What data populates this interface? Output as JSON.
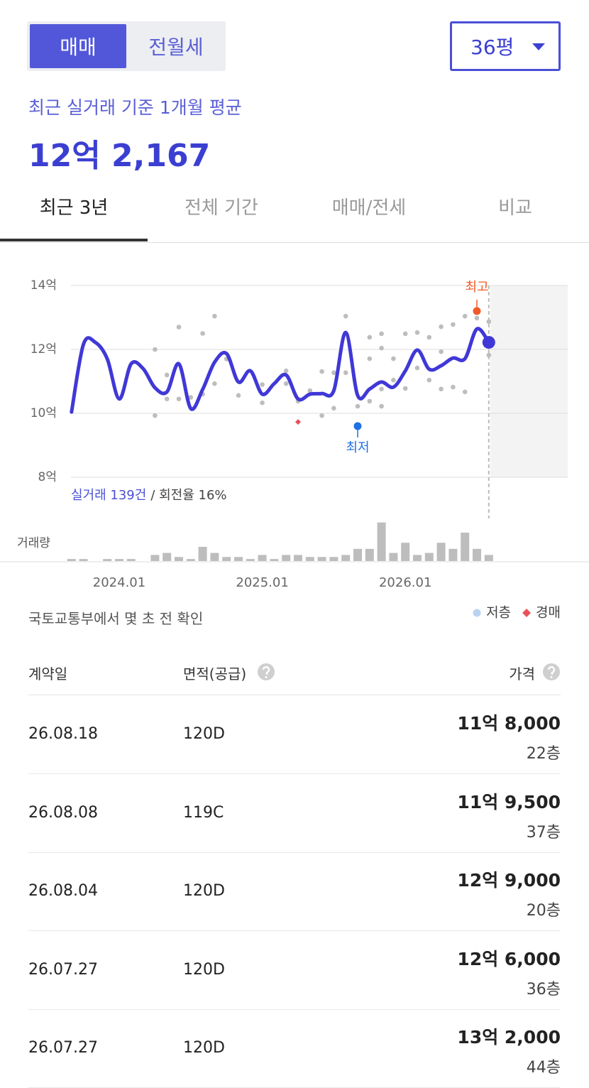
{
  "deal_toggle": {
    "options": [
      "매매",
      "전월세"
    ],
    "selected": 0
  },
  "size_selector": "36평",
  "summary": {
    "label": "최근 실거래 기준 1개월 평균",
    "value": "12억 2,167"
  },
  "tabs": {
    "items": [
      "최근 3년",
      "전체 기간",
      "매매/전세",
      "비교"
    ],
    "selected": 0
  },
  "chart_data": {
    "type": "line",
    "color": "#4038d6",
    "x": [
      "2023.09",
      "2023.10",
      "2023.11",
      "2023.12",
      "2024.01",
      "2024.02",
      "2024.03",
      "2024.04",
      "2024.05",
      "2024.06",
      "2024.07",
      "2024.08",
      "2024.09",
      "2024.10",
      "2024.11",
      "2024.12",
      "2025.01",
      "2025.02",
      "2025.03",
      "2025.04",
      "2025.05",
      "2025.06",
      "2025.07",
      "2025.08",
      "2025.09",
      "2025.10",
      "2025.11",
      "2025.12",
      "2026.01",
      "2026.02",
      "2026.03",
      "2026.04",
      "2026.05",
      "2026.06",
      "2026.07",
      "2026.08"
    ],
    "values": [
      10.04,
      12.16,
      12.22,
      11.7,
      10.45,
      11.55,
      11.4,
      10.8,
      10.67,
      11.55,
      10.15,
      10.75,
      11.6,
      11.87,
      10.98,
      11.33,
      10.6,
      10.93,
      11.2,
      10.45,
      10.6,
      10.62,
      10.71,
      12.53,
      10.56,
      10.76,
      10.98,
      10.82,
      11.33,
      11.98,
      11.38,
      11.49,
      11.73,
      11.71,
      12.64,
      12.22
    ],
    "xticks": [
      "2024.01",
      "2025.01",
      "2026.01"
    ],
    "ylim": [
      8,
      14
    ],
    "yticks": [
      {
        "value": 8,
        "label": "8억"
      },
      {
        "value": 10,
        "label": "10억"
      },
      {
        "value": 12,
        "label": "12억"
      },
      {
        "value": 14,
        "label": "14억"
      }
    ],
    "grid": true,
    "trades": {
      "color": "#bdbdbd",
      "x": [
        "2024.04",
        "2024.04",
        "2024.05",
        "2024.05",
        "2024.06",
        "2024.06",
        "2024.07",
        "2024.08",
        "2024.08",
        "2024.09",
        "2024.09",
        "2024.10",
        "2024.11",
        "2025.01",
        "2025.01",
        "2025.03",
        "2025.03",
        "2025.04",
        "2025.05",
        "2025.06",
        "2025.06",
        "2025.07",
        "2025.07",
        "2025.08",
        "2025.08",
        "2025.09",
        "2025.10",
        "2025.10",
        "2025.10",
        "2025.11",
        "2025.11",
        "2025.11",
        "2025.11",
        "2025.12",
        "2025.12",
        "2026.01",
        "2026.01",
        "2026.02",
        "2026.02",
        "2026.03",
        "2026.03",
        "2026.04",
        "2026.04",
        "2026.04",
        "2026.05",
        "2026.05",
        "2026.06",
        "2026.06",
        "2026.07",
        "2026.08",
        "2026.08"
      ],
      "values": [
        12.0,
        9.93,
        11.2,
        10.45,
        12.7,
        10.45,
        10.5,
        12.5,
        10.6,
        13.04,
        10.93,
        11.7,
        10.56,
        10.9,
        10.33,
        11.33,
        10.93,
        10.38,
        10.71,
        11.31,
        9.93,
        10.16,
        11.27,
        13.04,
        11.27,
        10.22,
        12.38,
        11.71,
        10.38,
        12.49,
        12.04,
        10.76,
        10.22,
        11.04,
        11.71,
        12.49,
        10.78,
        12.53,
        11.42,
        11.04,
        12.38,
        12.71,
        11.93,
        10.76,
        12.78,
        10.82,
        13.04,
        10.67,
        12.98,
        12.87,
        11.82
      ]
    },
    "auction": {
      "color": "#e8525a",
      "x": [
        "2025.04"
      ],
      "values": [
        9.73
      ]
    },
    "annotations": [
      {
        "label": "최고",
        "x": "2026.07",
        "value": 13.2,
        "color": "#f05a28"
      },
      {
        "label": "최저",
        "x": "2025.09",
        "value": 9.6,
        "color": "#1f6fe5"
      }
    ],
    "volume": {
      "label": "거래량",
      "color": "#bdbdbd",
      "values": [
        1,
        1,
        0,
        1,
        1,
        1,
        0,
        3,
        4,
        2,
        1,
        7,
        4,
        2,
        2,
        1,
        3,
        1,
        3,
        3,
        2,
        2,
        2,
        3,
        6,
        6,
        19,
        4,
        9,
        3,
        4,
        9,
        6,
        14,
        6,
        3
      ]
    },
    "trade_count": "실거래 139건",
    "turnover": "/ 회전율 16%",
    "legend": [
      {
        "name": "저층",
        "color": "#b9d2f2",
        "marker": "circle"
      },
      {
        "name": "경매",
        "color": "#e8525a",
        "marker": "diamond"
      }
    ]
  },
  "source": "국토교통부에서 몇 초 전 확인",
  "table": {
    "headers": [
      "계약일",
      "면적(공급)",
      "가격"
    ],
    "rows": [
      [
        "26.08.18",
        "120D",
        "11억 8,000",
        "22층"
      ],
      [
        "26.08.08",
        "119C",
        "11억 9,500",
        "37층"
      ],
      [
        "26.08.04",
        "120D",
        "12억 9,000",
        "20층"
      ],
      [
        "26.07.27",
        "120D",
        "12억 6,000",
        "36층"
      ],
      [
        "26.07.27",
        "120D",
        "13억 2,000",
        "44층"
      ]
    ]
  }
}
